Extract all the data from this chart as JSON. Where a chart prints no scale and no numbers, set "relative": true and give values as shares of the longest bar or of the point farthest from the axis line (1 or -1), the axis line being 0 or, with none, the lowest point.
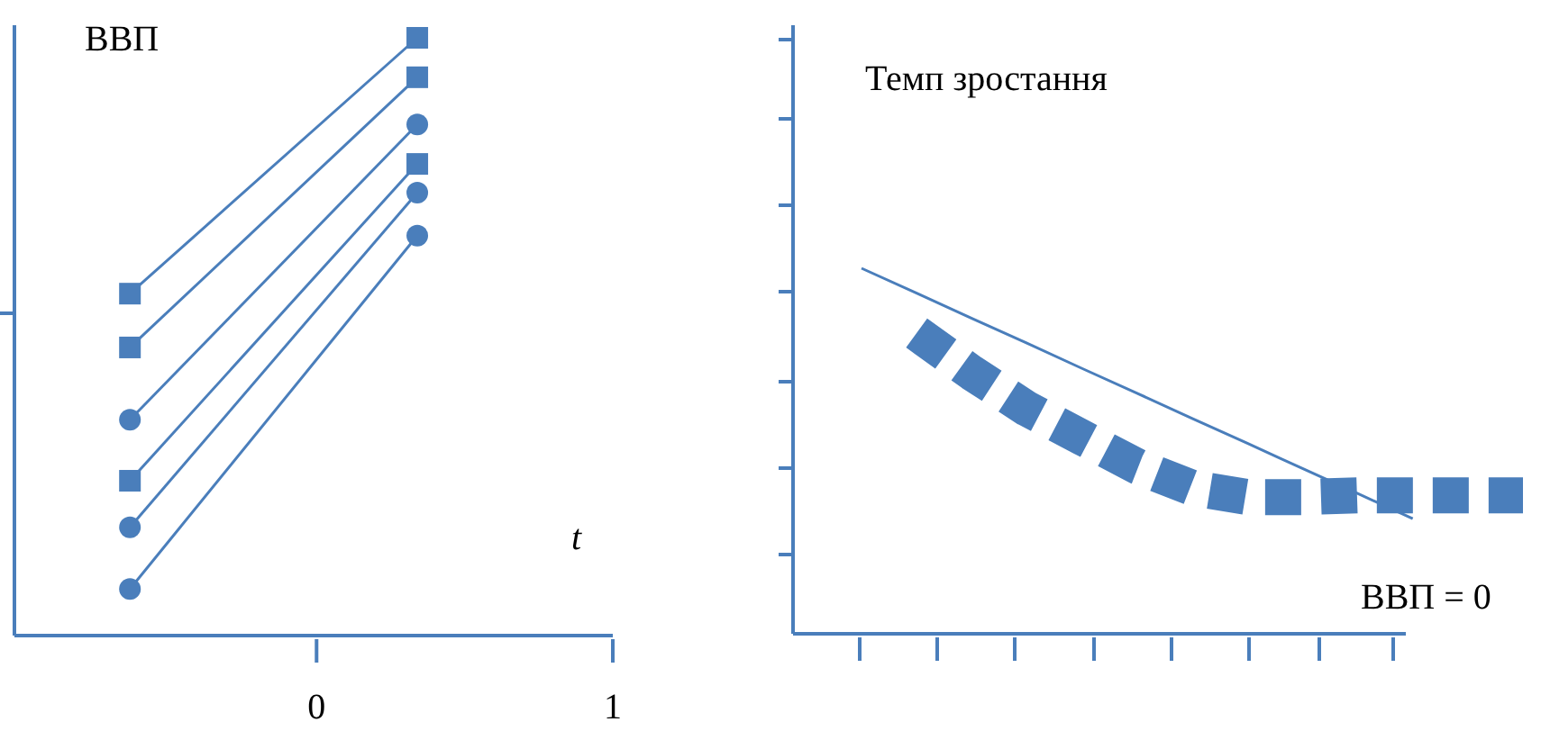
{
  "chart_data": [
    {
      "type": "line",
      "ylabel": "ВВП",
      "xlabel": "t",
      "relative": true,
      "x": [
        -0.63,
        0.34
      ],
      "xlim": [
        -1.02,
        1
      ],
      "xticks": [
        0,
        1
      ],
      "grid": false,
      "line_style": "solid",
      "series": [
        {
          "color": "#4a7ebb",
          "marker": "square",
          "values": [
            0.572,
            1
          ]
        },
        {
          "color": "#4a7ebb",
          "marker": "square",
          "values": [
            0.482,
            0.934
          ]
        },
        {
          "color": "#4a7ebb",
          "marker": "circle",
          "values": [
            0.361,
            0.855
          ]
        },
        {
          "color": "#4a7ebb",
          "marker": "square",
          "values": [
            0.259,
            0.789
          ]
        },
        {
          "color": "#4a7ebb",
          "marker": "circle",
          "values": [
            0.181,
            0.741
          ]
        },
        {
          "color": "#4a7ebb",
          "marker": "circle",
          "values": [
            0.078,
            0.669
          ]
        }
      ]
    },
    {
      "type": "line",
      "ylabel": "Темп зростання",
      "relative": true,
      "categories": [
        null,
        null,
        null,
        null,
        null,
        null,
        null,
        null,
        null,
        null,
        null,
        null,
        null
      ],
      "grid": false,
      "annotations": [
        "ВВП = 0"
      ],
      "series": [
        {
          "color": "#4a7ebb",
          "marker": "none",
          "values": [
            1,
            0.932,
            0.863,
            0.795,
            0.726,
            0.658,
            0.589,
            0.521,
            0.452,
            0.384,
            0.315,
            null,
            null
          ]
        },
        {
          "color": "#4a7ebb",
          "marker": "none",
          "line_style": "dotted",
          "values": [
            null,
            0.823,
            0.714,
            0.616,
            0.537,
            0.458,
            0.399,
            0.374,
            0.374,
            0.379,
            0.379,
            0.379,
            0.379
          ]
        }
      ]
    }
  ]
}
